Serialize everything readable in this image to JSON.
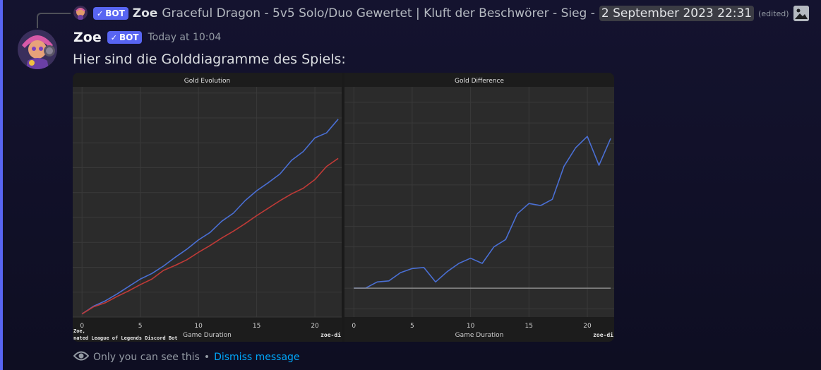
{
  "reply": {
    "bot_tag": "BOT",
    "author": "Zoe",
    "text": "Graceful Dragon - 5v5 Solo/Duo Gewertet | Kluft der Beschwörer - Sieg -",
    "timestamp_chip": "2 September 2023 22:31",
    "edited": "(edited)",
    "attachment_icon": "image-icon"
  },
  "message": {
    "author": "Zoe",
    "bot_tag": "BOT",
    "timestamp": "Today at 10:04",
    "content": "Hier sind die Golddiagramme des Spiels:"
  },
  "footer": {
    "visibility_text": "Only you can see this",
    "separator": "•",
    "dismiss_label": "Dismiss message",
    "eye_icon": "eye-icon"
  },
  "colors": {
    "blurple": "#5865f2",
    "link": "#00a8fc",
    "blue_series": "#4a6fd4",
    "red_series": "#c03a37"
  },
  "chart_data": [
    {
      "type": "line",
      "title": "Gold Evolution",
      "xlabel": "Game Duration",
      "x_ticks": [
        0,
        5,
        10,
        15,
        20
      ],
      "xlim": [
        -0.8,
        22.3
      ],
      "watermark_left": "Zoe,\nnated League of Legends Discord Bot",
      "watermark_right": "zoe-di",
      "series": [
        {
          "color": "blue",
          "x": [
            0,
            1,
            2,
            3,
            4,
            5,
            6,
            7,
            8,
            9,
            10,
            11,
            12,
            13,
            14,
            15,
            16,
            17,
            18,
            19,
            20,
            21,
            22
          ],
          "values": [
            500,
            1750,
            2600,
            3700,
            4900,
            6100,
            7000,
            8200,
            9600,
            10900,
            12400,
            13600,
            15400,
            16700,
            18700,
            20300,
            21600,
            23000,
            25200,
            26600,
            28800,
            29600,
            31800
          ]
        },
        {
          "color": "red",
          "x": [
            0,
            1,
            2,
            3,
            4,
            5,
            6,
            7,
            8,
            9,
            10,
            11,
            12,
            13,
            14,
            15,
            16,
            17,
            18,
            19,
            20,
            21,
            22
          ],
          "values": [
            500,
            1650,
            2300,
            3300,
            4200,
            5200,
            6100,
            7500,
            8300,
            9200,
            10400,
            11500,
            12700,
            13800,
            15000,
            16300,
            17500,
            18700,
            19800,
            20700,
            22100,
            24200,
            25500
          ]
        }
      ]
    },
    {
      "type": "line",
      "title": "Gold Difference",
      "xlabel": "Game Duration",
      "x_ticks": [
        0,
        5,
        10,
        15,
        20
      ],
      "xlim": [
        -0.8,
        22.3
      ],
      "watermark_right": "zoe-di",
      "series": [
        {
          "color": "blue",
          "x": [
            0,
            1,
            2,
            3,
            4,
            5,
            6,
            7,
            8,
            9,
            10,
            11,
            12,
            13,
            14,
            15,
            16,
            17,
            18,
            19,
            20,
            21,
            22
          ],
          "values": [
            0,
            0,
            600,
            700,
            1500,
            1900,
            2000,
            600,
            1600,
            2400,
            2900,
            2400,
            4000,
            4700,
            7200,
            8200,
            8000,
            8600,
            11800,
            13600,
            14700,
            11900,
            14500
          ]
        },
        {
          "color": "gray",
          "x": [
            0,
            22
          ],
          "values": [
            0,
            0
          ]
        }
      ]
    }
  ]
}
